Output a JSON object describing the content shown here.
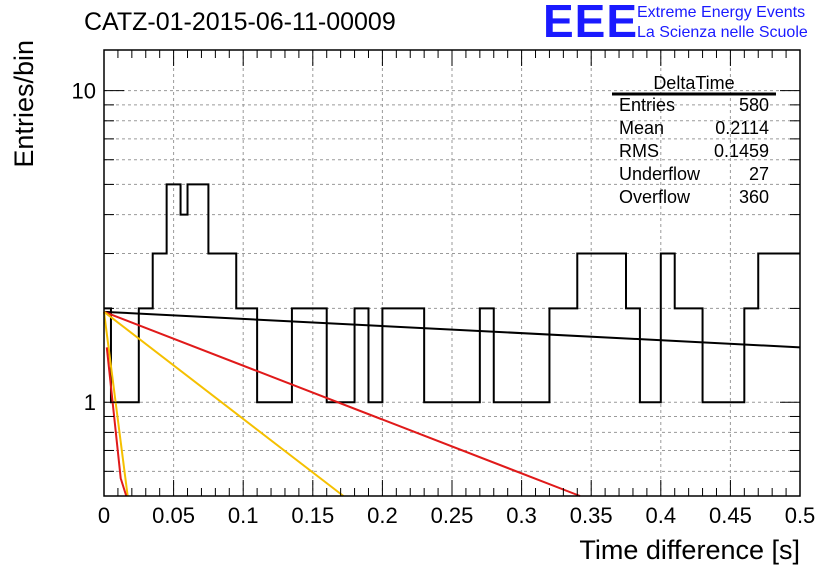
{
  "title": "CATZ-01-2015-06-11-00009",
  "logo": {
    "mark": "EEE",
    "line1": "Extreme Energy Events",
    "line2": "La Scienza nelle Scuole",
    "color": "#1a1aff"
  },
  "stats_box": {
    "name": "DeltaTime",
    "rows": [
      {
        "label": "Entries",
        "value": "580"
      },
      {
        "label": "Mean",
        "value": "0.2114"
      },
      {
        "label": "RMS",
        "value": "0.1459"
      },
      {
        "label": "Underflow",
        "value": "27"
      },
      {
        "label": "Overflow",
        "value": "360"
      }
    ]
  },
  "chart_data": {
    "type": "histogram",
    "xlabel": "Time difference [s]",
    "ylabel": "Entries/bin",
    "xlim": [
      0,
      0.5
    ],
    "ylim": [
      0.5,
      13.5
    ],
    "y_scale": "log",
    "grid": true,
    "x_ticks": [
      0,
      0.05,
      0.1,
      0.15,
      0.2,
      0.25,
      0.3,
      0.35,
      0.4,
      0.45,
      0.5
    ],
    "x_tick_labels": [
      "0",
      "0.05",
      "0.1",
      "0.15",
      "0.2",
      "0.25",
      "0.3",
      "0.35",
      "0.4",
      "0.45",
      "0.5"
    ],
    "y_labeled_ticks": [
      {
        "value": 1,
        "label": "1"
      },
      {
        "value": 10,
        "label": "10"
      }
    ],
    "bin_width": 0.005,
    "bin_counts": [
      2,
      1,
      1,
      1,
      1,
      2,
      2,
      3,
      3,
      5,
      5,
      4,
      5,
      5,
      5,
      3,
      3,
      3,
      3,
      2,
      2,
      2,
      1,
      1,
      1,
      1,
      1,
      2,
      2,
      2,
      2,
      2,
      1,
      1,
      1,
      1,
      2,
      2,
      1,
      1,
      2,
      2,
      2,
      2,
      2,
      2,
      1,
      1,
      1,
      1,
      1,
      1,
      1,
      1,
      2,
      2,
      1,
      1,
      1,
      1,
      1,
      1,
      1,
      1,
      2,
      2,
      2,
      2,
      3,
      3,
      3,
      3,
      3,
      3,
      3,
      2,
      2,
      1,
      1,
      1,
      3,
      3,
      2,
      2,
      2,
      2,
      1,
      1,
      1,
      1,
      1,
      1,
      2,
      2,
      3,
      3,
      3,
      3,
      3,
      3
    ],
    "series": [
      {
        "color": "#000000",
        "points": [
          [
            0.0,
            1.95
          ],
          [
            0.5,
            1.5
          ]
        ]
      },
      {
        "color": "#e01a1a",
        "points": [
          [
            0.0,
            1.95
          ],
          [
            0.342,
            0.5
          ]
        ]
      },
      {
        "color": "#f5c000",
        "points": [
          [
            0.0,
            1.95
          ],
          [
            0.172,
            0.5
          ]
        ]
      },
      {
        "color": "#f5c000",
        "points": [
          [
            0.0,
            1.95
          ],
          [
            0.017,
            0.5
          ]
        ]
      },
      {
        "color": "#e01a1a",
        "points": [
          [
            0.002,
            1.5
          ],
          [
            0.012,
            0.57
          ],
          [
            0.016,
            0.5
          ]
        ]
      }
    ]
  }
}
